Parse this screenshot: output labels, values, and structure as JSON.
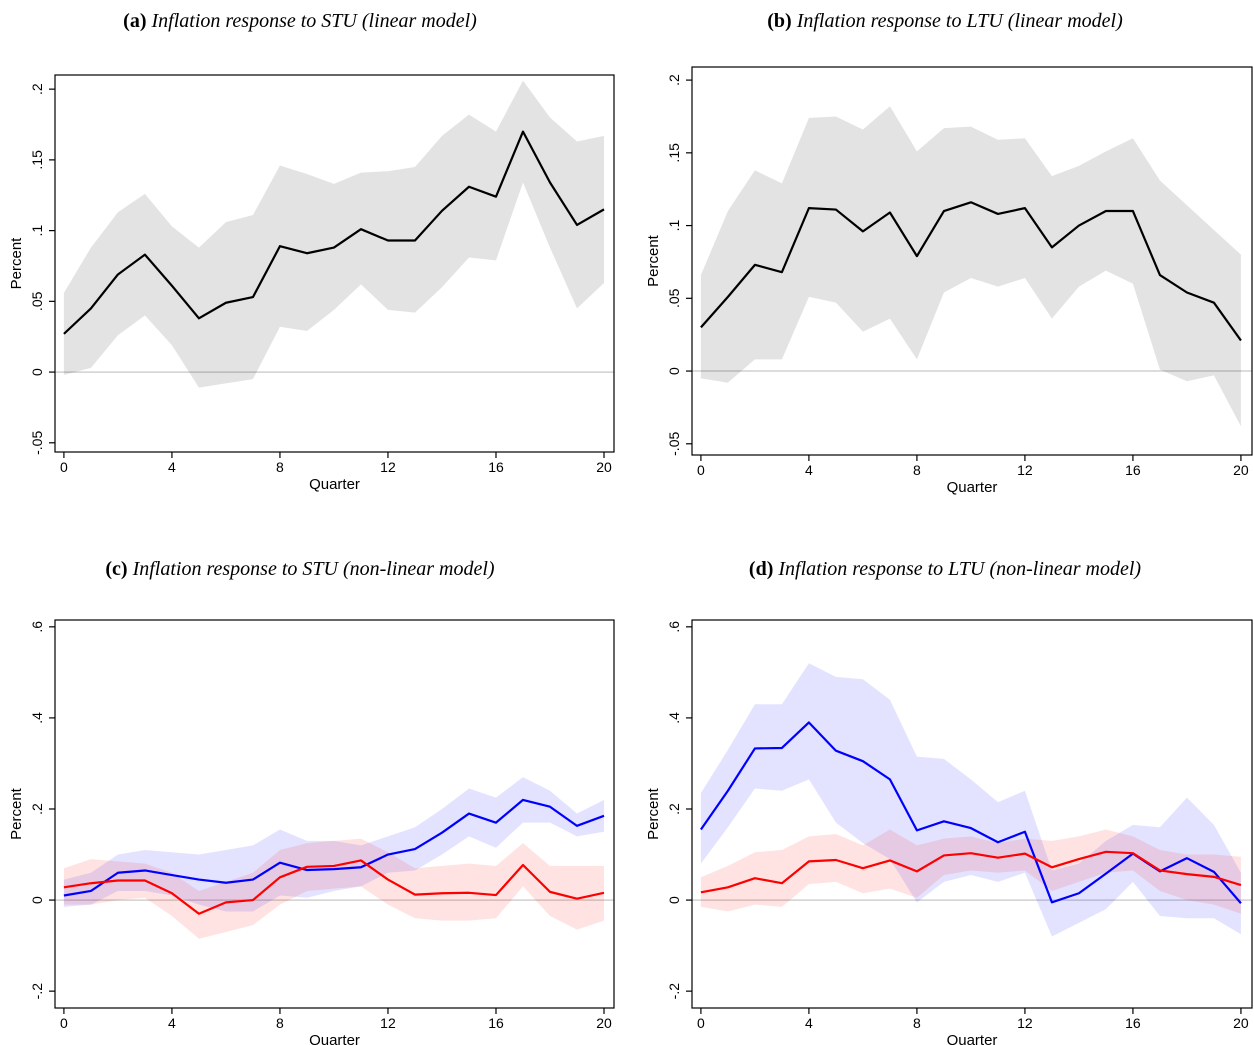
{
  "chart_data": [
    {
      "type": "line",
      "label": "(a)",
      "title": "Inflation response to STU (linear model)",
      "xlabel": "Quarter",
      "ylabel": "Percent",
      "x": [
        0,
        1,
        2,
        3,
        4,
        5,
        6,
        7,
        8,
        9,
        10,
        11,
        12,
        13,
        14,
        15,
        16,
        17,
        18,
        19,
        20
      ],
      "xlim": [
        -0.33,
        20.37
      ],
      "xticks": [
        0,
        4,
        8,
        12,
        16,
        20
      ],
      "ylim": [
        -0.0565,
        0.21
      ],
      "yticks": [
        {
          "value": -0.05,
          "label": "-.05"
        },
        0,
        {
          "value": 0.05,
          "label": ".05"
        },
        {
          "value": 0.1,
          "label": ".1"
        },
        {
          "value": 0.15,
          "label": ".15"
        },
        {
          "value": 0.2,
          "label": ".2"
        }
      ],
      "zero_line": true,
      "series": [
        {
          "color": "#000000",
          "values": [
            0.027,
            0.045,
            0.069,
            0.083,
            0.061,
            0.038,
            0.049,
            0.053,
            0.089,
            0.084,
            0.088,
            0.101,
            0.093,
            0.093,
            0.114,
            0.131,
            0.124,
            0.17,
            0.134,
            0.104,
            0.115
          ],
          "upper": [
            0.056,
            0.088,
            0.113,
            0.126,
            0.103,
            0.088,
            0.106,
            0.111,
            0.146,
            0.14,
            0.133,
            0.141,
            0.142,
            0.145,
            0.167,
            0.182,
            0.17,
            0.206,
            0.18,
            0.163,
            0.167
          ],
          "lower": [
            -0.002,
            0.003,
            0.026,
            0.04,
            0.019,
            -0.011,
            -0.008,
            -0.005,
            0.032,
            0.029,
            0.044,
            0.062,
            0.044,
            0.042,
            0.06,
            0.081,
            0.079,
            0.134,
            0.088,
            0.045,
            0.063
          ]
        }
      ]
    },
    {
      "type": "line",
      "label": "(b)",
      "title": "Inflation response to LTU (linear model)",
      "xlabel": "Quarter",
      "ylabel": "Percent",
      "x": [
        0,
        1,
        2,
        3,
        4,
        5,
        6,
        7,
        8,
        9,
        10,
        11,
        12,
        13,
        14,
        15,
        16,
        17,
        18,
        19,
        20
      ],
      "xlim": [
        -0.33,
        20.41
      ],
      "xticks": [
        0,
        4,
        8,
        12,
        16,
        20
      ],
      "ylim": [
        -0.0577,
        0.209
      ],
      "yticks": [
        {
          "value": -0.05,
          "label": "-.05"
        },
        0,
        {
          "value": 0.05,
          "label": ".05"
        },
        {
          "value": 0.1,
          "label": ".1"
        },
        {
          "value": 0.15,
          "label": ".15"
        },
        {
          "value": 0.2,
          "label": ".2"
        }
      ],
      "zero_line": true,
      "series": [
        {
          "color": "#000000",
          "values": [
            0.03,
            0.051,
            0.073,
            0.068,
            0.112,
            0.111,
            0.096,
            0.109,
            0.079,
            0.11,
            0.116,
            0.108,
            0.112,
            0.085,
            0.1,
            0.11,
            0.11,
            0.066,
            0.054,
            0.047,
            0.021
          ],
          "upper": [
            0.066,
            0.11,
            0.138,
            0.129,
            0.174,
            0.175,
            0.166,
            0.182,
            0.151,
            0.167,
            0.168,
            0.159,
            0.16,
            0.134,
            0.141,
            0.151,
            0.16,
            0.131,
            0.114,
            0.097,
            0.08
          ],
          "lower": [
            -0.005,
            -0.008,
            0.008,
            0.008,
            0.051,
            0.047,
            0.027,
            0.036,
            0.008,
            0.054,
            0.064,
            0.058,
            0.064,
            0.036,
            0.058,
            0.069,
            0.06,
            0.001,
            -0.007,
            -0.003,
            -0.038
          ]
        }
      ]
    },
    {
      "type": "line",
      "label": "(c)",
      "title": "Inflation response to STU (non-linear model)",
      "xlabel": "Quarter",
      "ylabel": "Percent",
      "x": [
        0,
        1,
        2,
        3,
        4,
        5,
        6,
        7,
        8,
        9,
        10,
        11,
        12,
        13,
        14,
        15,
        16,
        17,
        18,
        19,
        20
      ],
      "xlim": [
        -0.33,
        20.37
      ],
      "xticks": [
        0,
        4,
        8,
        12,
        16,
        20
      ],
      "ylim": [
        -0.237,
        0.615
      ],
      "yticks": [
        {
          "value": -0.2,
          "label": "-.2"
        },
        0,
        {
          "value": 0.2,
          "label": ".2"
        },
        {
          "value": 0.4,
          "label": ".4"
        },
        {
          "value": 0.6,
          "label": ".6"
        }
      ],
      "zero_line": true,
      "series": [
        {
          "color": "#0000ff",
          "values": [
            0.01,
            0.02,
            0.06,
            0.065,
            0.055,
            0.045,
            0.038,
            0.045,
            0.082,
            0.066,
            0.068,
            0.072,
            0.1,
            0.112,
            0.148,
            0.19,
            0.17,
            0.22,
            0.205,
            0.163,
            0.185
          ],
          "upper": [
            0.045,
            0.06,
            0.1,
            0.11,
            0.105,
            0.1,
            0.11,
            0.12,
            0.155,
            0.13,
            0.13,
            0.12,
            0.14,
            0.16,
            0.2,
            0.245,
            0.225,
            0.27,
            0.24,
            0.19,
            0.22
          ],
          "lower": [
            -0.015,
            -0.01,
            0.02,
            0.02,
            0.01,
            -0.01,
            -0.025,
            -0.025,
            0.01,
            0.005,
            0.02,
            0.03,
            0.06,
            0.065,
            0.1,
            0.14,
            0.115,
            0.17,
            0.17,
            0.14,
            0.15
          ]
        },
        {
          "color": "#ff0000",
          "values": [
            0.028,
            0.037,
            0.043,
            0.043,
            0.015,
            -0.03,
            -0.005,
            0,
            0.05,
            0.073,
            0.075,
            0.087,
            0.045,
            0.012,
            0.015,
            0.016,
            0.011,
            0.077,
            0.018,
            0.003,
            0.016
          ],
          "upper": [
            0.07,
            0.09,
            0.085,
            0.08,
            0.06,
            0.02,
            0.04,
            0.06,
            0.11,
            0.125,
            0.13,
            0.135,
            0.105,
            0.07,
            0.075,
            0.08,
            0.075,
            0.125,
            0.075,
            0.075,
            0.075
          ],
          "lower": [
            -0.01,
            -0.01,
            0.0,
            0.005,
            -0.035,
            -0.085,
            -0.07,
            -0.055,
            -0.01,
            0.02,
            0.025,
            0.03,
            -0.01,
            -0.04,
            -0.045,
            -0.045,
            -0.04,
            0.03,
            -0.035,
            -0.065,
            -0.045
          ]
        }
      ]
    },
    {
      "type": "line",
      "label": "(d)",
      "title": "Inflation response to LTU (non-linear model)",
      "xlabel": "Quarter",
      "ylabel": "Percent",
      "x": [
        0,
        1,
        2,
        3,
        4,
        5,
        6,
        7,
        8,
        9,
        10,
        11,
        12,
        13,
        14,
        15,
        16,
        17,
        18,
        19,
        20
      ],
      "xlim": [
        -0.33,
        20.41
      ],
      "xticks": [
        0,
        4,
        8,
        12,
        16,
        20
      ],
      "ylim": [
        -0.237,
        0.615
      ],
      "yticks": [
        {
          "value": -0.2,
          "label": "-.2"
        },
        0,
        {
          "value": 0.2,
          "label": ".2"
        },
        {
          "value": 0.4,
          "label": ".4"
        },
        {
          "value": 0.6,
          "label": ".6"
        }
      ],
      "zero_line": true,
      "series": [
        {
          "color": "#0000ff",
          "values": [
            0.155,
            0.24,
            0.333,
            0.334,
            0.39,
            0.328,
            0.305,
            0.265,
            0.153,
            0.173,
            0.158,
            0.127,
            0.15,
            -0.005,
            0.015,
            0.058,
            0.102,
            0.063,
            0.092,
            0.062,
            -0.007
          ],
          "upper": [
            0.235,
            0.33,
            0.43,
            0.43,
            0.52,
            0.49,
            0.485,
            0.44,
            0.315,
            0.31,
            0.265,
            0.215,
            0.24,
            0.065,
            0.08,
            0.13,
            0.165,
            0.16,
            0.225,
            0.165,
            0.06
          ],
          "lower": [
            0.08,
            0.16,
            0.245,
            0.24,
            0.265,
            0.17,
            0.125,
            0.09,
            -0.005,
            0.04,
            0.055,
            0.04,
            0.06,
            -0.08,
            -0.05,
            -0.02,
            0.04,
            -0.035,
            -0.04,
            -0.04,
            -0.075
          ]
        },
        {
          "color": "#ff0000",
          "values": [
            0.017,
            0.028,
            0.048,
            0.037,
            0.085,
            0.088,
            0.07,
            0.087,
            0.063,
            0.098,
            0.103,
            0.093,
            0.102,
            0.072,
            0.09,
            0.106,
            0.103,
            0.065,
            0.057,
            0.051,
            0.033
          ],
          "upper": [
            0.05,
            0.075,
            0.105,
            0.11,
            0.14,
            0.145,
            0.12,
            0.155,
            0.12,
            0.135,
            0.14,
            0.125,
            0.135,
            0.13,
            0.14,
            0.155,
            0.14,
            0.11,
            0.1,
            0.1,
            0.095
          ],
          "lower": [
            -0.015,
            -0.025,
            -0.01,
            -0.015,
            0.035,
            0.04,
            0.015,
            0.025,
            0.005,
            0.055,
            0.065,
            0.06,
            0.065,
            0.02,
            0.04,
            0.06,
            0.065,
            0.02,
            0,
            -0.01,
            -0.03
          ]
        }
      ]
    }
  ]
}
